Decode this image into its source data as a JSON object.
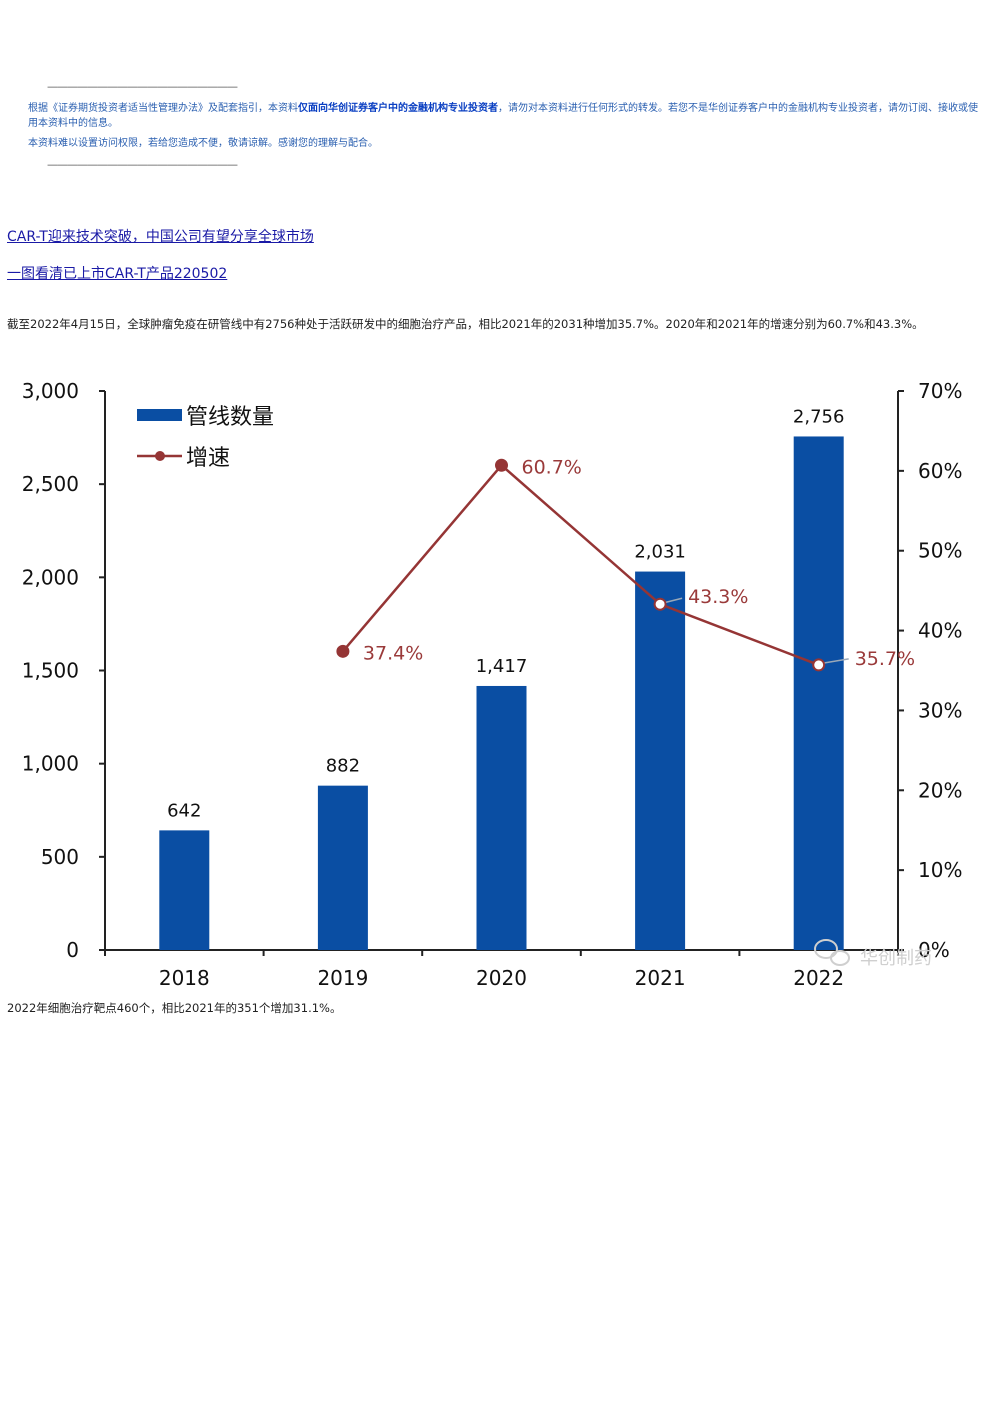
{
  "header": {
    "divider": "———————————————————",
    "notice_p1_prefix": "根据《证券期货投资者适当性管理办法》及配套指引，本资料",
    "notice_p1_bold": "仅面向华创证券客户中的金融机构专业投资者",
    "notice_p1_suffix": "，请勿对本资料进行任何形式的转发。若您不是华创证券客户中的金融机构专业投资者，请勿订阅、接收或使用本资料中的信息。",
    "notice_p2": "本资料难以设置访问权限，若给您造成不便，敬请谅解。感谢您的理解与配合。"
  },
  "links": [
    "CAR-T迎来技术突破，中国公司有望分享全球市场",
    "一图看清已上市CAR-T产品220502"
  ],
  "paragraphs": {
    "intro": "截至2022年4月15日，全球肿瘤免疫在研管线中有2756种处于活跃研发中的细胞治疗产品，相比2021年的2031种增加35.7%。2020年和2021年的增速分别为60.7%和43.3%。",
    "after_chart": "2022年细胞治疗靶点460个，相比2021年的351个增加31.1%。"
  },
  "watermark": "华创制药",
  "colors": {
    "bar": "#0a4ea3",
    "line": "#953535",
    "notice": "#2a5fb0",
    "link": "#1a1aa6"
  },
  "chart_data": {
    "type": "bar",
    "categories": [
      "2018",
      "2019",
      "2020",
      "2021",
      "2022"
    ],
    "series": [
      {
        "name": "管线数量",
        "type": "bar",
        "axis": "left",
        "values": [
          642,
          882,
          1417,
          2031,
          2756
        ],
        "labels": [
          "642",
          "882",
          "1,417",
          "2,031",
          "2,756"
        ]
      },
      {
        "name": "增速",
        "type": "line",
        "axis": "right",
        "values": [
          null,
          37.4,
          60.7,
          43.3,
          35.7
        ],
        "labels": [
          "",
          "37.4%",
          "60.7%",
          "43.3%",
          "35.7%"
        ]
      }
    ],
    "yleft": {
      "ylim": [
        0,
        3000
      ],
      "ticks": [
        0,
        500,
        1000,
        1500,
        2000,
        2500,
        3000
      ],
      "tick_labels": [
        "0",
        "500",
        "1,000",
        "1,500",
        "2,000",
        "2,500",
        "3,000"
      ]
    },
    "yright": {
      "ylim": [
        0,
        70
      ],
      "ticks": [
        0,
        10,
        20,
        30,
        40,
        50,
        60,
        70
      ],
      "tick_labels": [
        "0%",
        "10%",
        "20%",
        "30%",
        "40%",
        "50%",
        "60%",
        "70%"
      ]
    },
    "grid": false,
    "legend": "top-left"
  }
}
